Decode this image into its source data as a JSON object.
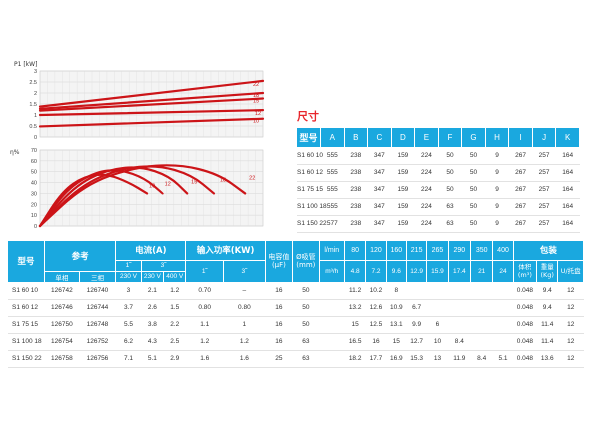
{
  "chart_data": [
    {
      "type": "line",
      "ylabel": "P1 [kW]",
      "yticks": [
        "3",
        "2.5",
        "2",
        "1.5",
        "1",
        "0.5",
        "0"
      ],
      "ylim": [
        0,
        3
      ],
      "grid": true,
      "series": [
        {
          "name": "10",
          "x": [
            0,
            1
          ],
          "y": [
            0.48,
            0.83
          ]
        },
        {
          "name": "12",
          "x": [
            0,
            1
          ],
          "y": [
            1.0,
            1.22
          ]
        },
        {
          "name": "15",
          "x": [
            0,
            1
          ],
          "y": [
            1.2,
            1.75
          ]
        },
        {
          "name": "18",
          "x": [
            0,
            1
          ],
          "y": [
            1.28,
            2.0
          ]
        },
        {
          "name": "22",
          "x": [
            0,
            1
          ],
          "y": [
            1.38,
            2.55
          ]
        }
      ]
    },
    {
      "type": "line",
      "ylabel": "η%",
      "yticks": [
        "70",
        "60",
        "50",
        "40",
        "30",
        "20",
        "10",
        "0"
      ],
      "ylim": [
        0,
        70
      ],
      "grid": true,
      "series": [
        {
          "name": "10",
          "x": [
            0,
            0.1,
            0.2,
            0.3,
            0.4,
            0.48
          ],
          "y": [
            0,
            32,
            46,
            48,
            40,
            30
          ]
        },
        {
          "name": "12",
          "x": [
            0,
            0.12,
            0.25,
            0.36,
            0.47,
            0.55
          ],
          "y": [
            0,
            34,
            50,
            52,
            44,
            30
          ]
        },
        {
          "name": "15",
          "x": [
            0,
            0.15,
            0.3,
            0.45,
            0.58,
            0.66
          ],
          "y": [
            0,
            36,
            52,
            55,
            46,
            30
          ]
        },
        {
          "name": "18",
          "x": [
            0,
            0.18,
            0.36,
            0.53,
            0.68,
            0.78
          ],
          "y": [
            0,
            37,
            53,
            56,
            47,
            30
          ]
        },
        {
          "name": "22",
          "x": [
            0,
            0.2,
            0.42,
            0.62,
            0.8,
            0.92
          ],
          "y": [
            0,
            38,
            54,
            57,
            48,
            30
          ]
        }
      ]
    }
  ],
  "dimensions": {
    "title": "尺寸",
    "headers": [
      "型号",
      "A",
      "B",
      "C",
      "D",
      "E",
      "F",
      "G",
      "H",
      "I",
      "J",
      "K"
    ],
    "rows": [
      [
        "S1 60 10",
        "555",
        "238",
        "347",
        "159",
        "224",
        "50",
        "50",
        "9",
        "267",
        "257",
        "164"
      ],
      [
        "S1 60 12",
        "555",
        "238",
        "347",
        "159",
        "224",
        "50",
        "50",
        "9",
        "267",
        "257",
        "164"
      ],
      [
        "S1 75 15",
        "555",
        "238",
        "347",
        "159",
        "224",
        "50",
        "50",
        "9",
        "267",
        "257",
        "164"
      ],
      [
        "S1 100 18",
        "555",
        "238",
        "347",
        "159",
        "224",
        "63",
        "50",
        "9",
        "267",
        "257",
        "164"
      ],
      [
        "S1 150 22",
        "577",
        "238",
        "347",
        "159",
        "224",
        "63",
        "50",
        "9",
        "267",
        "257",
        "164"
      ]
    ]
  },
  "main": {
    "h_model": "型号",
    "h_ref": "参考",
    "h_ref_single": "单相",
    "h_ref_three": "三相",
    "h_current": "电流(A)",
    "h_cur_1": "1˜",
    "h_cur_3": "3˜",
    "h_cur_230a": "230 V",
    "h_cur_230b": "230 V",
    "h_cur_400": "400 V",
    "h_power": "输入功率(KW)",
    "h_pow_1": "1˜",
    "h_pow_3": "3˜",
    "h_cap": "电容值",
    "h_cap_unit": "(μF)",
    "h_suction": "Ø吸管",
    "h_suction_unit": "(mm)",
    "h_flow_lmin": "l/min",
    "h_flow_m3h": "m³/h",
    "flow_lmin": [
      "80",
      "120",
      "160",
      "215",
      "265",
      "290",
      "350",
      "400"
    ],
    "flow_m3h": [
      "4.8",
      "7.2",
      "9.6",
      "12.9",
      "15.9",
      "17.4",
      "21",
      "24"
    ],
    "h_pack": "包装",
    "h_volume": "体积",
    "h_volume_unit": "(m³)",
    "h_weight": "重量",
    "h_weight_unit": "(Kg)",
    "h_pallet": "U/托盘",
    "rows": [
      [
        "S1 60 10",
        "126742",
        "126740",
        "3",
        "2.1",
        "1.2",
        "0.70",
        "–",
        "16",
        "50",
        "",
        "11.2",
        "10.2",
        "8",
        "",
        "",
        "",
        "",
        "",
        "0.048",
        "9.4",
        "12"
      ],
      [
        "S1 60 12",
        "126746",
        "126744",
        "3.7",
        "2.6",
        "1.5",
        "0.80",
        "0.80",
        "16",
        "50",
        "",
        "13.2",
        "12.6",
        "10.9",
        "6.7",
        "",
        "",
        "",
        "",
        "0.048",
        "9.4",
        "12"
      ],
      [
        "S1 75 15",
        "126750",
        "126748",
        "5.5",
        "3.8",
        "2.2",
        "1.1",
        "1",
        "16",
        "50",
        "",
        "15",
        "12.5",
        "13.1",
        "9.9",
        "6",
        "",
        "",
        "",
        "0.048",
        "11.4",
        "12"
      ],
      [
        "S1 100 18",
        "126754",
        "126752",
        "6.2",
        "4.3",
        "2.5",
        "1.2",
        "1.2",
        "16",
        "63",
        "",
        "16.5",
        "16",
        "15",
        "12.7",
        "10",
        "8.4",
        "",
        "",
        "0.048",
        "11.4",
        "12"
      ],
      [
        "S1 150 22",
        "126758",
        "126756",
        "7.1",
        "5.1",
        "2.9",
        "1.6",
        "1.6",
        "25",
        "63",
        "",
        "18.2",
        "17.7",
        "16.9",
        "15.3",
        "13",
        "11.9",
        "8.4",
        "5.1",
        "0.048",
        "13.6",
        "12"
      ]
    ]
  }
}
